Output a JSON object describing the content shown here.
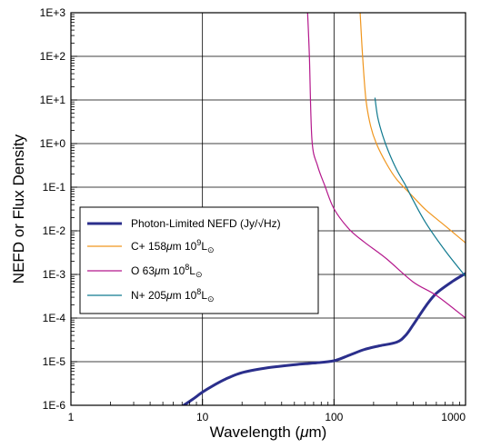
{
  "chart_data": {
    "type": "line",
    "xlabel": "Wavelength (μm)",
    "ylabel": "NEFD or Flux Density",
    "x_scale": "log",
    "y_scale": "log",
    "xlim": [
      1,
      1000
    ],
    "ylim": [
      1e-06,
      1000
    ],
    "grid": true,
    "legend_position": "center-left",
    "x_ticks": [
      {
        "value": 1,
        "label": "1"
      },
      {
        "value": 10,
        "label": "10"
      },
      {
        "value": 100,
        "label": "100"
      },
      {
        "value": 1000,
        "label": "1000"
      }
    ],
    "y_ticks": [
      {
        "value": 1e-06,
        "label": "1E-6"
      },
      {
        "value": 1e-05,
        "label": "1E-5"
      },
      {
        "value": 0.0001,
        "label": "1E-4"
      },
      {
        "value": 0.001,
        "label": "1E-3"
      },
      {
        "value": 0.01,
        "label": "1E-2"
      },
      {
        "value": 0.1,
        "label": "1E-1"
      },
      {
        "value": 1,
        "label": "1E+0"
      },
      {
        "value": 10,
        "label": "1E+1"
      },
      {
        "value": 100,
        "label": "1E+2"
      },
      {
        "value": 1000,
        "label": "1E+3"
      }
    ],
    "series": [
      {
        "key": "photon",
        "name": "Photon-Limited NEFD (Jy/√Hz)",
        "color": "#2b2f8c",
        "x": [
          7.2,
          8.5,
          10,
          12,
          15,
          20,
          30,
          50,
          70,
          100,
          130,
          170,
          220,
          300,
          350,
          400,
          500,
          600,
          800,
          1000
        ],
        "y": [
          1e-06,
          1.4e-06,
          2e-06,
          2.8e-06,
          4e-06,
          5.6e-06,
          7.1e-06,
          8.5e-06,
          9.3e-06,
          1.05e-05,
          1.4e-05,
          1.9e-05,
          2.3e-05,
          2.8e-05,
          4e-05,
          7e-05,
          0.00019,
          0.00037,
          0.0007,
          0.00105
        ]
      },
      {
        "key": "cplus",
        "name": "C+ 158μm 10⁹L⊙",
        "color": "#f0961e",
        "x": [
          158,
          165,
          175,
          190,
          210,
          250,
          300,
          400,
          500,
          700,
          1000
        ],
        "y": [
          1000,
          100,
          10,
          2.5,
          1.0,
          0.35,
          0.15,
          0.06,
          0.03,
          0.013,
          0.0053
        ]
      },
      {
        "key": "o63",
        "name": "O 63μm 10⁸L⊙",
        "color": "#b4188c",
        "x": [
          63,
          65,
          68,
          75,
          85,
          100,
          130,
          170,
          250,
          400,
          600,
          1000
        ],
        "y": [
          1000,
          100,
          1.2,
          0.31,
          0.11,
          0.032,
          0.011,
          0.0055,
          0.0023,
          0.00067,
          0.00033,
          0.0001
        ]
      },
      {
        "key": "nplus",
        "name": "N+ 205μm 10⁸L⊙",
        "color": "#117a90",
        "x": [
          205,
          215,
          235,
          260,
          300,
          350,
          400,
          500,
          700,
          1000
        ],
        "y": [
          11,
          4,
          1.5,
          0.65,
          0.25,
          0.11,
          0.05,
          0.015,
          0.0035,
          0.0009
        ]
      }
    ]
  },
  "legend": {
    "photon": {
      "text": "Photon-Limited NEFD (Jy/√Hz)"
    },
    "cplus": {
      "pre": "C+ 158",
      "mu": "μ",
      "post": "m 10",
      "sup": "9",
      "post2": "L",
      "sub": "⊙"
    },
    "o63": {
      "pre": "O 63",
      "mu": "μ",
      "post": "m 10",
      "sup": "8",
      "post2": "L",
      "sub": "⊙"
    },
    "nplus": {
      "pre": "N+ 205",
      "mu": "μ",
      "post": "m 10",
      "sup": "8",
      "post2": "L",
      "sub": "⊙"
    }
  },
  "axis_titles": {
    "x_pre": "Wavelength (",
    "x_mu": "μ",
    "x_post": "m)",
    "y": "NEFD or Flux Density"
  }
}
